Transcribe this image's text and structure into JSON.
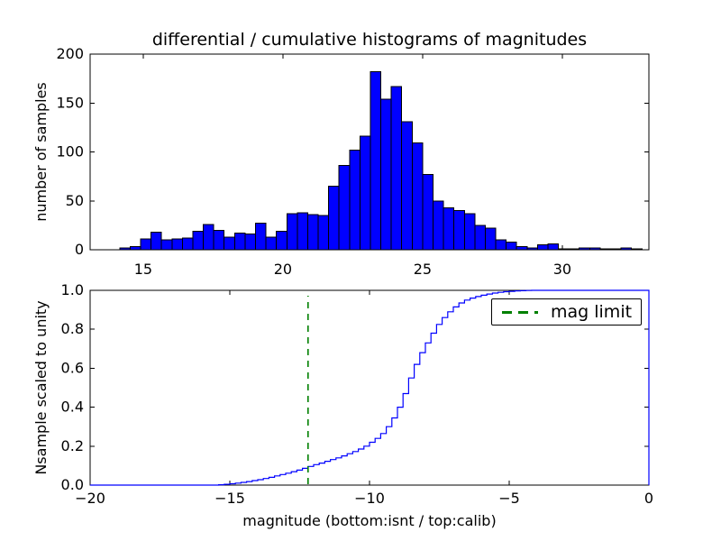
{
  "figure_title": "differential / cumulative histograms of magnitudes",
  "chart_data": [
    {
      "type": "bar",
      "subtype": "histogram",
      "title": "differential / cumulative histograms of magnitudes",
      "ylabel": "number of samples",
      "xlabel": "",
      "xlim": [
        13.1,
        33.1
      ],
      "ylim": [
        0,
        200
      ],
      "grid": false,
      "xtick_values": [
        15,
        20,
        25,
        30
      ],
      "xtick_labels": [
        "15",
        "20",
        "25",
        "30"
      ],
      "ytick_values": [
        0,
        50,
        100,
        150,
        200
      ],
      "ytick_labels": [
        "0",
        "50",
        "100",
        "150",
        "200"
      ],
      "bin_start": 14.16,
      "bin_width": 0.3738,
      "values": [
        2,
        3,
        11,
        18,
        10,
        11,
        12,
        19,
        26,
        20,
        13,
        17,
        16,
        27,
        13,
        19,
        37,
        38,
        36,
        35,
        65,
        86,
        102,
        116,
        182,
        154,
        167,
        131,
        109,
        77,
        50,
        43,
        40,
        37,
        25,
        22,
        10,
        8,
        3,
        2,
        5,
        6,
        1,
        1,
        2,
        2,
        1,
        1,
        2,
        1
      ],
      "bar_color": "#0000ff",
      "bar_edge_color": "#000000"
    },
    {
      "type": "line",
      "subtype": "cumulative-step",
      "ylabel": "Nsample scaled to unity",
      "xlabel": "magnitude (bottom:isnt / top:calib)",
      "xlim": [
        -20,
        0
      ],
      "ylim": [
        0.0,
        1.0
      ],
      "grid": false,
      "xtick_values": [
        -20,
        -15,
        -10,
        -5,
        0
      ],
      "xtick_labels": [
        "−20",
        "−15",
        "−10",
        "−5",
        "0"
      ],
      "ytick_values": [
        0.0,
        0.2,
        0.4,
        0.6,
        0.8,
        1.0
      ],
      "ytick_labels": [
        "0.0",
        "0.2",
        "0.4",
        "0.6",
        "0.8",
        "1.0"
      ],
      "line_color": "#0000ff",
      "points": [
        [
          -15.4,
          0.002
        ],
        [
          -15.2,
          0.004
        ],
        [
          -15.0,
          0.007
        ],
        [
          -14.8,
          0.01
        ],
        [
          -14.6,
          0.014
        ],
        [
          -14.4,
          0.018
        ],
        [
          -14.2,
          0.023
        ],
        [
          -14.0,
          0.028
        ],
        [
          -13.8,
          0.034
        ],
        [
          -13.6,
          0.04
        ],
        [
          -13.4,
          0.047
        ],
        [
          -13.2,
          0.054
        ],
        [
          -13.0,
          0.061
        ],
        [
          -12.8,
          0.069
        ],
        [
          -12.6,
          0.077
        ],
        [
          -12.4,
          0.086
        ],
        [
          -12.2,
          0.096
        ],
        [
          -12.0,
          0.105
        ],
        [
          -11.8,
          0.113
        ],
        [
          -11.6,
          0.122
        ],
        [
          -11.4,
          0.131
        ],
        [
          -11.2,
          0.14
        ],
        [
          -11.0,
          0.15
        ],
        [
          -10.8,
          0.161
        ],
        [
          -10.6,
          0.172
        ],
        [
          -10.4,
          0.185
        ],
        [
          -10.2,
          0.2
        ],
        [
          -10.0,
          0.22
        ],
        [
          -9.8,
          0.24
        ],
        [
          -9.6,
          0.265
        ],
        [
          -9.4,
          0.3
        ],
        [
          -9.2,
          0.345
        ],
        [
          -9.0,
          0.4
        ],
        [
          -8.8,
          0.47
        ],
        [
          -8.6,
          0.55
        ],
        [
          -8.4,
          0.62
        ],
        [
          -8.2,
          0.68
        ],
        [
          -8.0,
          0.73
        ],
        [
          -7.8,
          0.78
        ],
        [
          -7.6,
          0.825
        ],
        [
          -7.4,
          0.86
        ],
        [
          -7.2,
          0.89
        ],
        [
          -7.0,
          0.915
        ],
        [
          -6.8,
          0.935
        ],
        [
          -6.6,
          0.95
        ],
        [
          -6.4,
          0.96
        ],
        [
          -6.2,
          0.968
        ],
        [
          -6.0,
          0.975
        ],
        [
          -5.8,
          0.981
        ],
        [
          -5.6,
          0.986
        ],
        [
          -5.4,
          0.99
        ],
        [
          -5.2,
          0.993
        ],
        [
          -5.0,
          0.995
        ],
        [
          -4.8,
          0.997
        ],
        [
          -4.6,
          0.998
        ],
        [
          -4.4,
          0.999
        ],
        [
          -4.2,
          1.0
        ]
      ],
      "vline": {
        "x": -12.2,
        "color": "#008000",
        "style": "dashed",
        "label": "mag limit"
      },
      "legend": {
        "label": "mag limit",
        "position": "upper right",
        "marker_color": "#008000"
      }
    }
  ]
}
